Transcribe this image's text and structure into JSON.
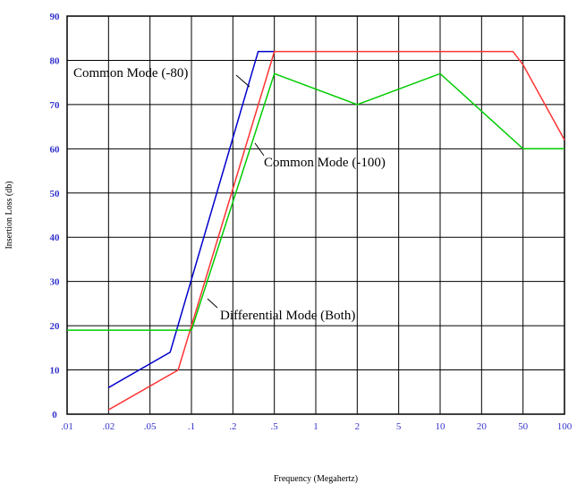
{
  "chart_data": {
    "type": "line",
    "title": "",
    "xlabel": "Frequency (Megahertz)",
    "ylabel": "Insertion Loss (db)",
    "x_tick_labels": [
      ".01",
      ".02",
      ".05",
      ".1",
      ".2",
      ".5",
      "1",
      "2",
      "5",
      "10",
      "20",
      "50",
      "100"
    ],
    "y_tick_labels": [
      "0",
      "10",
      "20",
      "30",
      "40",
      "50",
      "60",
      "70",
      "80",
      "90"
    ],
    "ylim": [
      0,
      90
    ],
    "grid": true,
    "series": [
      {
        "name": "Common Mode (-80)",
        "color": "#0000cc",
        "points": [
          [
            ".02",
            6
          ],
          [
            ".07",
            14
          ],
          [
            ".35",
            82
          ],
          [
            ".5",
            82
          ]
        ]
      },
      {
        "name": "Common Mode (-100)",
        "color": "#ff3333",
        "points": [
          [
            ".02",
            1
          ],
          [
            ".08",
            10
          ],
          [
            ".5",
            82
          ],
          [
            "40",
            82
          ],
          [
            "50",
            79
          ],
          [
            "100",
            62
          ]
        ]
      },
      {
        "name": "Differential Mode (Both)",
        "color": "#00cc00",
        "points": [
          [
            ".01",
            19
          ],
          [
            ".1",
            19
          ],
          [
            ".5",
            77
          ],
          [
            "2",
            70
          ],
          [
            "10",
            77
          ],
          [
            "50",
            60
          ],
          [
            "100",
            60
          ]
        ]
      }
    ],
    "annotations": [
      {
        "text": "Common Mode (-80)",
        "series": 0
      },
      {
        "text": "Common Mode (-100)",
        "series": 1
      },
      {
        "text": "Differential Mode (Both)",
        "series": 2
      }
    ]
  }
}
